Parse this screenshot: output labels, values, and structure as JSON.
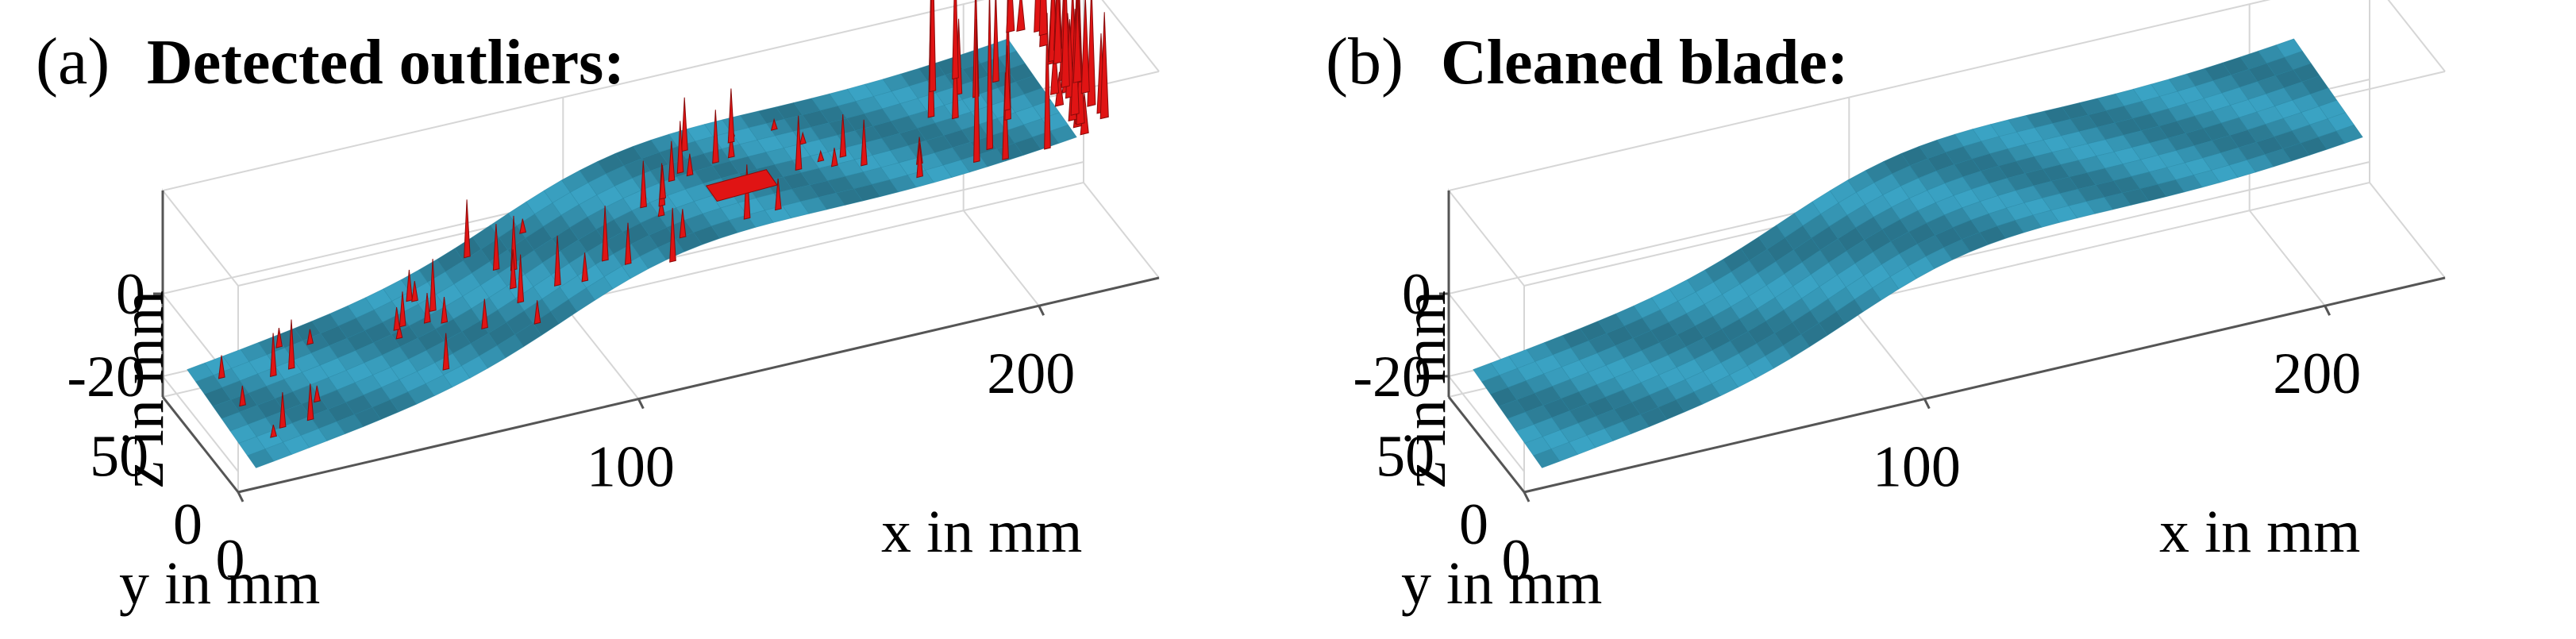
{
  "colors": {
    "surface": "#3aa3c4",
    "surface_dark": "#1f7f9e",
    "outlier": "#e01414",
    "outlier_dark": "#8a0a0a",
    "axis": "#555555",
    "grid": "#d6d6d6"
  },
  "chart_data": [
    {
      "type": "surface3d",
      "panel": "(a)",
      "title": "Detected outliers:",
      "xlabel": "x in mm",
      "ylabel": "y in mm",
      "zlabel": "z in mm",
      "x_ticks": [
        0,
        100,
        200
      ],
      "y_ticks": [
        0,
        50
      ],
      "z_ticks": [
        -20,
        0
      ],
      "xlim": [
        0,
        230
      ],
      "ylim": [
        0,
        70
      ],
      "zlim": [
        -25,
        25
      ],
      "series": [
        {},
        {}
      ],
      "grid": true
    },
    {
      "type": "surface3d",
      "panel": "(b)",
      "title": "Cleaned blade:",
      "xlabel": "x in mm",
      "ylabel": "y in mm",
      "zlabel": "z in mm",
      "x_ticks": [
        0,
        100,
        200
      ],
      "y_ticks": [
        0,
        50
      ],
      "z_ticks": [
        -20,
        0
      ],
      "xlim": [
        0,
        230
      ],
      "ylim": [
        0,
        70
      ],
      "zlim": [
        -25,
        25
      ],
      "series": [
        {}
      ],
      "grid": true
    }
  ]
}
